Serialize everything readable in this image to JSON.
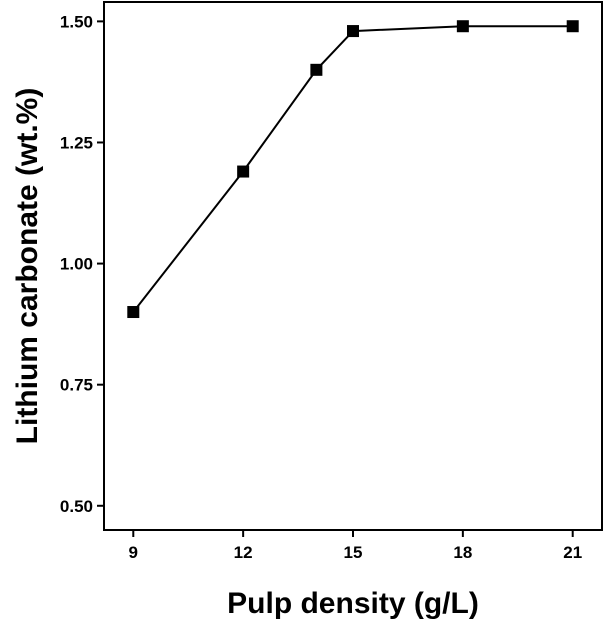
{
  "chart_data": {
    "type": "line",
    "title": "",
    "xlabel": "Pulp density (g/L)",
    "ylabel": "Lithium carbonate (wt.%)",
    "xlim": [
      8.2,
      21.8
    ],
    "ylim": [
      0.45,
      1.54
    ],
    "x_ticks": [
      9,
      12,
      15,
      18,
      21
    ],
    "y_ticks": [
      0.5,
      0.75,
      1.0,
      1.25,
      1.5
    ],
    "x_tick_labels": [
      "9",
      "12",
      "15",
      "18",
      "21"
    ],
    "y_tick_labels": [
      "0.50",
      "0.75",
      "1.00",
      "1.25",
      "1.50"
    ],
    "grid": false,
    "legend": "none",
    "series": [
      {
        "x": [
          9,
          12,
          14,
          15,
          18,
          21
        ],
        "y": [
          0.9,
          1.19,
          1.4,
          1.48,
          1.49,
          1.49
        ],
        "marker": "square",
        "color": "#000000"
      }
    ]
  }
}
